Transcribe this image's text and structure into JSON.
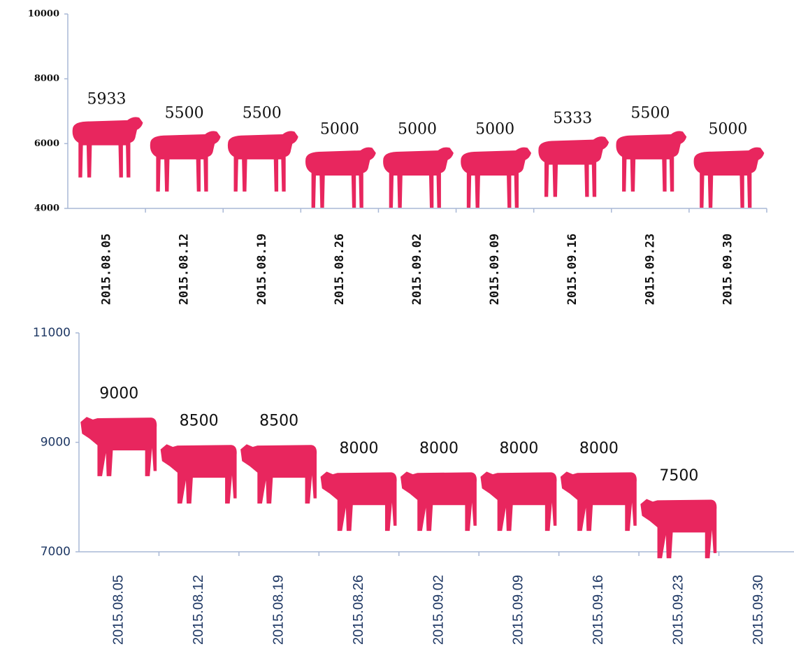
{
  "chart_data": [
    {
      "type": "pictogram-bar",
      "icon": "sheep",
      "color": "#e8265e",
      "categories": [
        "2015.08.05",
        "2015.08.12",
        "2015.08.19",
        "2015.08.26",
        "2015.09.02",
        "2015.09.09",
        "2015.09.16",
        "2015.09.23",
        "2015.09.30"
      ],
      "values": [
        5933,
        5500,
        5500,
        5000,
        5000,
        5000,
        5333,
        5500,
        5000
      ],
      "ylim": [
        4000,
        10000
      ],
      "yticks": [
        4000,
        6000,
        8000,
        10000
      ]
    },
    {
      "type": "pictogram-bar",
      "icon": "cow",
      "color": "#e8265e",
      "categories": [
        "2015.08.05",
        "2015.08.12",
        "2015.08.19",
        "2015.08.26",
        "2015.09.02",
        "2015.09.09",
        "2015.09.16",
        "2015.09.23",
        "2015.09.30"
      ],
      "values": [
        9000,
        8500,
        8500,
        8000,
        8000,
        8000,
        8000,
        7500,
        null
      ],
      "ylim": [
        7000,
        11000
      ],
      "yticks": [
        7000,
        9000,
        11000
      ]
    }
  ]
}
